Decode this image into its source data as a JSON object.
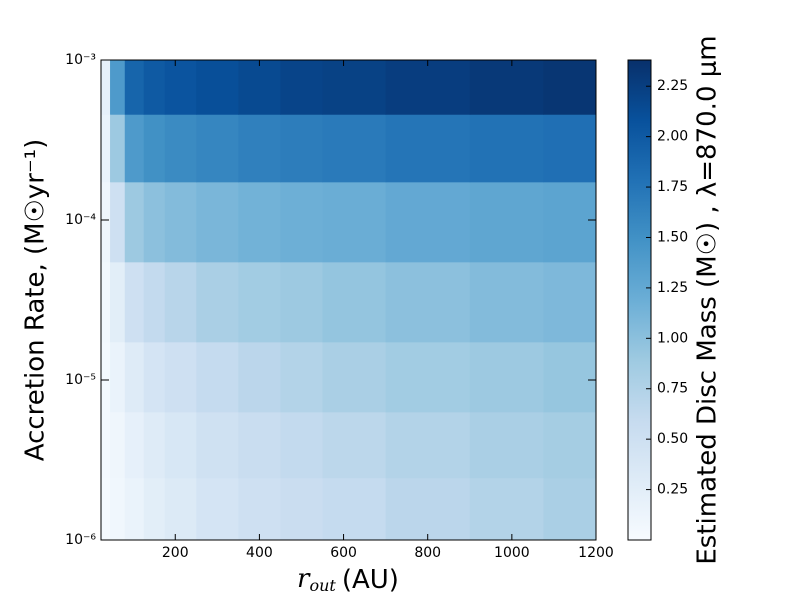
{
  "chart_data": {
    "type": "heatmap",
    "x_label": {
      "symbol": "r",
      "subscript": "out",
      "unit": "(AU)"
    },
    "y_label": "Accretion Rate, (M☉yr⁻¹)",
    "colorbar_label": "Estimated Disc Mass (M☉) , λ=870.0 μm",
    "x": [
      30,
      60,
      100,
      150,
      200,
      300,
      400,
      500,
      600,
      800,
      1000,
      1150
    ],
    "y": [
      1.5e-06,
      4e-06,
      1e-05,
      3e-05,
      0.0001,
      0.0003,
      0.0007
    ],
    "z": [
      [
        0.02,
        0.08,
        0.15,
        0.25,
        0.32,
        0.42,
        0.5,
        0.55,
        0.6,
        0.68,
        0.74,
        0.8
      ],
      [
        0.03,
        0.1,
        0.2,
        0.3,
        0.38,
        0.48,
        0.56,
        0.62,
        0.67,
        0.74,
        0.8,
        0.84
      ],
      [
        0.04,
        0.15,
        0.3,
        0.42,
        0.5,
        0.6,
        0.68,
        0.74,
        0.8,
        0.86,
        0.9,
        0.94
      ],
      [
        0.06,
        0.25,
        0.5,
        0.62,
        0.7,
        0.8,
        0.86,
        0.9,
        0.95,
        1.0,
        1.05,
        1.08
      ],
      [
        0.1,
        0.5,
        0.9,
        1.0,
        1.05,
        1.1,
        1.15,
        1.18,
        1.2,
        1.25,
        1.28,
        1.3
      ],
      [
        0.15,
        0.9,
        1.4,
        1.5,
        1.55,
        1.6,
        1.65,
        1.68,
        1.7,
        1.75,
        1.78,
        1.8
      ],
      [
        0.2,
        1.4,
        1.9,
        2.0,
        2.05,
        2.1,
        2.15,
        2.2,
        2.22,
        2.26,
        2.3,
        2.33
      ]
    ],
    "xlim": [
      23.5,
      1200
    ],
    "xticks": [
      200,
      400,
      600,
      800,
      1000,
      1200
    ],
    "ylim": [
      1e-06,
      0.001
    ],
    "y_scale": "log",
    "yticks": [
      {
        "value": 1e-06,
        "label": "10⁻⁶"
      },
      {
        "value": 1e-05,
        "label": "10⁻⁵"
      },
      {
        "value": 0.0001,
        "label": "10⁻⁴"
      },
      {
        "value": 0.001,
        "label": "10⁻³"
      }
    ],
    "clim": [
      0,
      2.38
    ],
    "cticks": [
      0.25,
      {
        "value": 0.5,
        "label": "0.50"
      },
      0.75,
      {
        "value": 1,
        "label": "1.00"
      },
      1.25,
      {
        "value": 1.5,
        "label": "1.50"
      },
      1.75,
      {
        "value": 2,
        "label": "2.00"
      },
      2.25
    ],
    "colormap": [
      "#f7fbff",
      "#deebf7",
      "#c6dbef",
      "#9ecae1",
      "#6baed6",
      "#4292c6",
      "#2171b5",
      "#08519c",
      "#08306b"
    ]
  }
}
